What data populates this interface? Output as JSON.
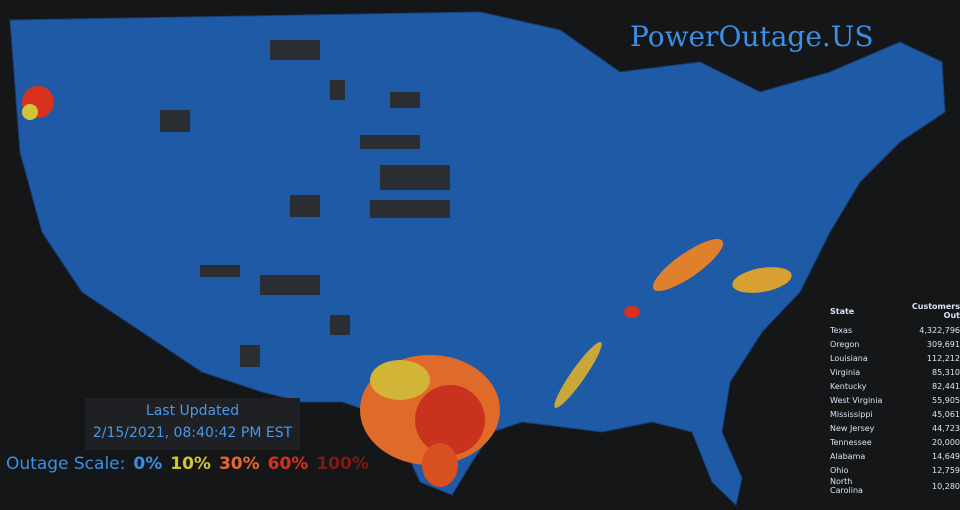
{
  "header": {
    "title": "PowerOutage.US"
  },
  "last_updated": {
    "label": "Last Updated",
    "timestamp": "2/15/2021, 08:40:42 PM EST"
  },
  "scale": {
    "label": "Outage Scale:",
    "items": [
      {
        "text": "0%",
        "color": "#3a8fe6"
      },
      {
        "text": "10%",
        "color": "#d2c436"
      },
      {
        "text": "30%",
        "color": "#e8672c"
      },
      {
        "text": "60%",
        "color": "#d8321f"
      },
      {
        "text": "100%",
        "color": "#7e1a12"
      }
    ]
  },
  "table": {
    "headers": [
      "State",
      "Customers Out"
    ],
    "rows": [
      [
        "Texas",
        "4,322,796"
      ],
      [
        "Oregon",
        "309,691"
      ],
      [
        "Louisiana",
        "112,212"
      ],
      [
        "Virginia",
        "85,310"
      ],
      [
        "Kentucky",
        "82,441"
      ],
      [
        "West Virginia",
        "55,905"
      ],
      [
        "Mississippi",
        "45,061"
      ],
      [
        "New Jersey",
        "44,723"
      ],
      [
        "Tennessee",
        "20,000"
      ],
      [
        "Alabama",
        "14,649"
      ],
      [
        "Ohio",
        "12,759"
      ],
      [
        "North Carolina",
        "10,280"
      ]
    ]
  }
}
